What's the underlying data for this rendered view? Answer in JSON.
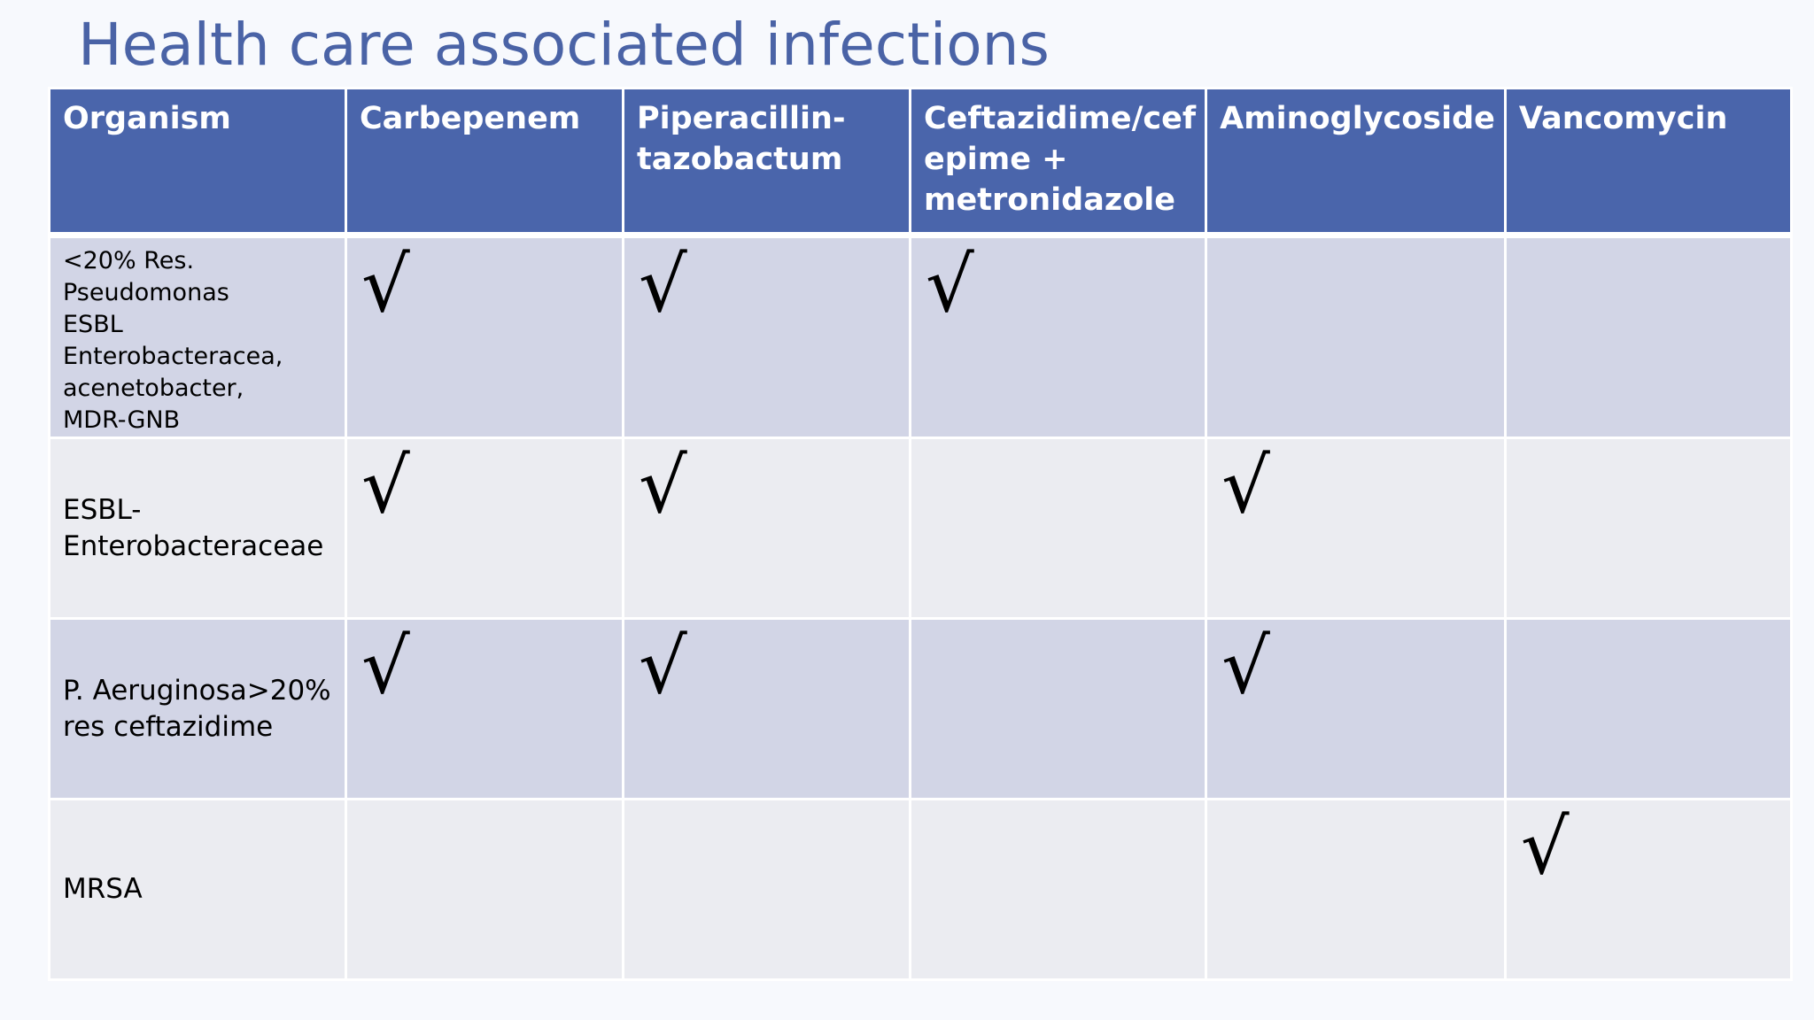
{
  "title": "Health care associated infections",
  "table": {
    "headers": [
      [
        "Organism"
      ],
      [
        "Carbepenem"
      ],
      [
        "Piperacillin-",
        "tazobactum"
      ],
      [
        "Ceftazidime/cef",
        "epime +",
        "metronidazole"
      ],
      [
        "Aminoglycoside"
      ],
      [
        "Vancomycin"
      ]
    ],
    "check_symbol": "√",
    "rows": [
      {
        "organism": [
          "<20% Res.",
          "Pseudomonas",
          "ESBL",
          "Enterobacteracea,",
          "acenetobacter,",
          "MDR-GNB"
        ],
        "marks": [
          "√",
          "√",
          "√",
          "",
          ""
        ]
      },
      {
        "organism": [
          "ESBL-",
          "Enterobacteraceae"
        ],
        "marks": [
          "√",
          "√",
          "",
          "√",
          ""
        ]
      },
      {
        "organism": [
          "P. Aeruginosa>20%",
          "res ceftazidime"
        ],
        "marks": [
          "√",
          "√",
          "",
          "√",
          ""
        ]
      },
      {
        "organism": [
          "MRSA"
        ],
        "marks": [
          "",
          "",
          "",
          "",
          "√"
        ]
      }
    ]
  }
}
